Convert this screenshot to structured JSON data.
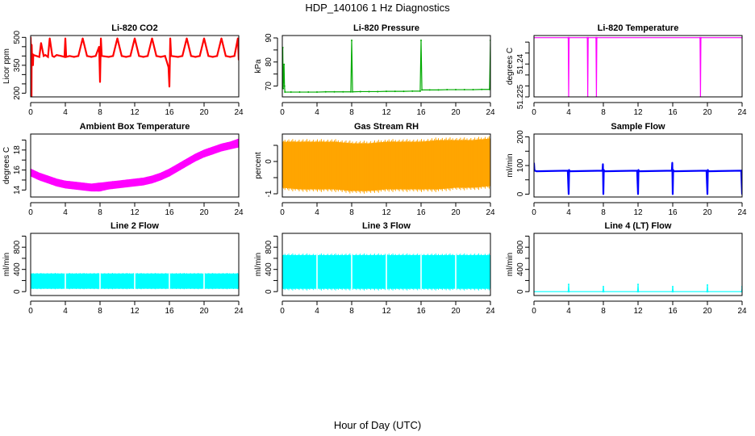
{
  "figure": {
    "title": "HDP_140106  1 Hz Diagnostics",
    "xlabel": "Hour of Day (UTC)"
  },
  "chart_data": [
    {
      "type": "line",
      "title": "Li-820 CO2",
      "ylabel": "Licor ppm",
      "color": "#ff0000",
      "xlim": [
        0,
        24
      ],
      "ylim": [
        180,
        510
      ],
      "xticks": [
        0,
        4,
        8,
        12,
        16,
        20,
        24
      ],
      "yticks": [
        200,
        250,
        300,
        350,
        400,
        450,
        500
      ],
      "yticks_labeled": [
        200,
        350,
        500
      ],
      "series": [
        {
          "x": [
            0,
            0.05,
            0.1,
            0.12,
            0.15,
            0.2,
            0.25,
            0.27,
            0.3,
            0.35,
            1.0,
            1.2,
            1.5,
            1.7,
            2.0,
            2.2,
            2.5,
            2.7,
            3.0,
            3.5,
            3.9,
            4.0,
            4.1,
            4.5,
            5.0,
            5.5,
            6.0,
            6.5,
            7.0,
            7.5,
            7.9,
            8.0,
            8.1,
            8.2,
            9.0,
            9.5,
            10.0,
            10.5,
            11.0,
            11.5,
            12.0,
            12.5,
            13.0,
            13.5,
            14.0,
            14.5,
            15.0,
            15.5,
            15.9,
            16.0,
            16.1,
            16.2,
            17.0,
            17.5,
            18.0,
            18.5,
            19.0,
            19.5,
            20.0,
            20.5,
            21.0,
            21.5,
            22.0,
            22.5,
            23.0,
            23.5,
            23.9,
            24.0
          ],
          "y": [
            500,
            410,
            180,
            460,
            410,
            380,
            410,
            350,
            400,
            405,
            395,
            470,
            400,
            405,
            395,
            495,
            400,
            395,
            405,
            400,
            395,
            495,
            395,
            400,
            395,
            400,
            495,
            400,
            395,
            400,
            450,
            260,
            495,
            400,
            395,
            400,
            495,
            400,
            395,
            400,
            495,
            400,
            395,
            400,
            495,
            400,
            395,
            400,
            340,
            235,
            495,
            400,
            395,
            400,
            495,
            400,
            395,
            400,
            495,
            400,
            395,
            400,
            495,
            400,
            395,
            400,
            495,
            380
          ]
        }
      ]
    },
    {
      "type": "line",
      "title": "Li-820 Pressure",
      "ylabel": "kPa",
      "color": "#00aa00",
      "xlim": [
        0,
        24
      ],
      "ylim": [
        65.5,
        91
      ],
      "xticks": [
        0,
        4,
        8,
        12,
        16,
        20,
        24
      ],
      "yticks": [
        70,
        75,
        80,
        85,
        90
      ],
      "yticks_labeled": [
        70,
        80,
        90
      ],
      "series": [
        {
          "x": [
            0,
            0.05,
            0.1,
            0.2,
            0.25,
            0.3,
            1,
            2,
            3,
            4,
            5,
            6,
            7,
            7.9,
            8.0,
            8.1,
            9,
            10,
            11,
            12,
            13,
            14,
            15,
            15.9,
            16.0,
            16.1,
            17,
            18,
            19,
            20,
            21,
            22,
            23,
            23.9,
            24.0
          ],
          "y": [
            75,
            86,
            69,
            79,
            70,
            67.5,
            67.5,
            67.5,
            67.5,
            67.5,
            67.6,
            67.6,
            67.6,
            67.6,
            89,
            67.6,
            67.7,
            67.7,
            67.7,
            67.8,
            67.8,
            67.8,
            67.9,
            67.9,
            89,
            68.4,
            68.4,
            68.4,
            68.5,
            68.5,
            68.5,
            68.5,
            68.6,
            68.6,
            89
          ]
        }
      ]
    },
    {
      "type": "line",
      "title": "Li-820 Temperature",
      "ylabel": "degrees C",
      "color": "#ff00ff",
      "xlim": [
        0,
        24
      ],
      "ylim": [
        51.225,
        51.253
      ],
      "xticks": [
        0,
        4,
        8,
        12,
        16,
        20,
        24
      ],
      "yticks": [
        51.225,
        51.23,
        51.235,
        51.24,
        51.245,
        51.25
      ],
      "yticks_labeled": [
        51.225,
        51.24
      ],
      "series": [
        {
          "x": [
            0,
            3.95,
            4.0,
            4.05,
            6.15,
            6.2,
            6.25,
            7.15,
            7.2,
            7.25,
            19.15,
            19.2,
            19.25,
            24
          ],
          "y": [
            51.252,
            51.252,
            51.225,
            51.252,
            51.252,
            51.225,
            51.252,
            51.252,
            51.225,
            51.252,
            51.252,
            51.225,
            51.252,
            51.252
          ]
        }
      ]
    },
    {
      "type": "area",
      "title": "Ambient Box Temperature",
      "ylabel": "degrees C",
      "color": "#ff00ff",
      "xlim": [
        0,
        24
      ],
      "ylim": [
        13.3,
        19.6
      ],
      "xticks": [
        0,
        4,
        8,
        12,
        16,
        20,
        24
      ],
      "yticks": [
        14,
        15,
        16,
        17,
        18,
        19
      ],
      "yticks_labeled": [
        14,
        16,
        18
      ],
      "series": [
        {
          "x": [
            0,
            1,
            2,
            3,
            4,
            5,
            6,
            7,
            8,
            9,
            10,
            11,
            12,
            13,
            14,
            15,
            16,
            17,
            18,
            19,
            20,
            21,
            22,
            23,
            24
          ],
          "ymin": [
            15.4,
            15.0,
            14.7,
            14.4,
            14.2,
            14.1,
            14.0,
            13.9,
            13.9,
            14.1,
            14.2,
            14.3,
            14.4,
            14.5,
            14.7,
            15.0,
            15.4,
            15.9,
            16.4,
            16.9,
            17.3,
            17.6,
            17.9,
            18.1,
            18.3
          ],
          "ymax": [
            16.1,
            15.7,
            15.4,
            15.1,
            14.9,
            14.8,
            14.7,
            14.6,
            14.7,
            14.8,
            14.9,
            15.0,
            15.1,
            15.2,
            15.4,
            15.7,
            16.1,
            16.6,
            17.1,
            17.6,
            18.0,
            18.3,
            18.6,
            18.8,
            19.1
          ]
        }
      ]
    },
    {
      "type": "area",
      "title": "Gas Stream RH",
      "ylabel": "percent",
      "color": "#ffa500",
      "xlim": [
        0,
        24
      ],
      "ylim": [
        -1.1,
        0.85
      ],
      "xticks": [
        0,
        4,
        8,
        12,
        16,
        20,
        24
      ],
      "yticks": [
        -1.0,
        -0.5,
        0.0,
        0.5
      ],
      "yticks_labeled": [
        -1.0,
        0.0
      ],
      "series": [
        {
          "x": [
            0,
            2,
            4,
            6,
            8,
            10,
            12,
            14,
            16,
            18,
            20,
            22,
            24
          ],
          "ymin": [
            -0.8,
            -0.85,
            -0.85,
            -0.85,
            -0.9,
            -0.9,
            -0.85,
            -0.85,
            -0.85,
            -0.85,
            -0.8,
            -0.8,
            -0.75
          ],
          "ymax": [
            0.6,
            0.6,
            0.6,
            0.6,
            0.55,
            0.55,
            0.6,
            0.6,
            0.6,
            0.65,
            0.65,
            0.65,
            0.7
          ]
        }
      ]
    },
    {
      "type": "line",
      "title": "Sample Flow",
      "ylabel": "ml/min",
      "color": "#0000ff",
      "xlim": [
        0,
        24
      ],
      "ylim": [
        -10,
        210
      ],
      "xticks": [
        0,
        4,
        8,
        12,
        16,
        20,
        24
      ],
      "yticks": [
        0,
        50,
        100,
        150,
        200
      ],
      "yticks_labeled": [
        0,
        100,
        200
      ],
      "series": [
        {
          "x": [
            0,
            0.05,
            0.1,
            0.3,
            3.9,
            3.95,
            4.0,
            4.05,
            4.1,
            7.9,
            7.95,
            8.0,
            8.05,
            8.1,
            11.9,
            11.95,
            12.0,
            12.05,
            12.1,
            15.9,
            15.95,
            16.0,
            16.05,
            16.1,
            19.9,
            19.95,
            20.0,
            20.05,
            20.1,
            23.9,
            23.95,
            24.0
          ],
          "y": [
            108,
            85,
            82,
            80,
            82,
            40,
            0,
            85,
            80,
            82,
            105,
            0,
            85,
            80,
            82,
            40,
            0,
            85,
            80,
            82,
            110,
            0,
            85,
            80,
            82,
            40,
            0,
            85,
            80,
            82,
            40,
            0
          ]
        }
      ]
    },
    {
      "type": "area",
      "title": "Line 2 Flow",
      "ylabel": "ml/min",
      "color": "#00ffff",
      "xlim": [
        0,
        24
      ],
      "ylim": [
        -70,
        1050
      ],
      "xticks": [
        0,
        4,
        8,
        12,
        16,
        20,
        24
      ],
      "yticks": [
        0,
        200,
        400,
        600,
        800,
        1000
      ],
      "yticks_labeled": [
        0,
        400,
        800
      ],
      "series": [
        {
          "x": [
            0,
            24
          ],
          "ymin": [
            60,
            60
          ],
          "ymax": [
            320,
            320
          ],
          "gaps": [
            4,
            8,
            12,
            16,
            20
          ]
        }
      ]
    },
    {
      "type": "area",
      "title": "Line 3 Flow",
      "ylabel": "ml/min",
      "color": "#00ffff",
      "xlim": [
        0,
        24
      ],
      "ylim": [
        -70,
        1050
      ],
      "xticks": [
        0,
        4,
        8,
        12,
        16,
        20,
        24
      ],
      "yticks": [
        0,
        200,
        400,
        600,
        800,
        1000
      ],
      "yticks_labeled": [
        0,
        400,
        800
      ],
      "series": [
        {
          "x": [
            0,
            24
          ],
          "ymin": [
            60,
            60
          ],
          "ymax": [
            650,
            650
          ],
          "gaps": [
            4,
            8,
            12,
            16,
            20
          ]
        }
      ]
    },
    {
      "type": "line",
      "title": "Line 4 (LT) Flow",
      "ylabel": "ml/min",
      "color": "#00ffff",
      "xlim": [
        0,
        24
      ],
      "ylim": [
        -70,
        1050
      ],
      "xticks": [
        0,
        4,
        8,
        12,
        16,
        20,
        24
      ],
      "yticks": [
        0,
        200,
        400,
        600,
        800,
        1000
      ],
      "yticks_labeled": [
        0,
        400,
        800
      ],
      "series": [
        {
          "x": [
            0,
            3.95,
            4.0,
            4.05,
            7.95,
            8.0,
            8.05,
            11.95,
            12.0,
            12.05,
            15.95,
            16.0,
            16.05,
            19.95,
            20.0,
            20.05,
            23.95,
            24.0
          ],
          "y": [
            0,
            0,
            130,
            0,
            0,
            90,
            0,
            0,
            130,
            0,
            0,
            90,
            0,
            0,
            120,
            0,
            0,
            90
          ]
        }
      ]
    }
  ]
}
